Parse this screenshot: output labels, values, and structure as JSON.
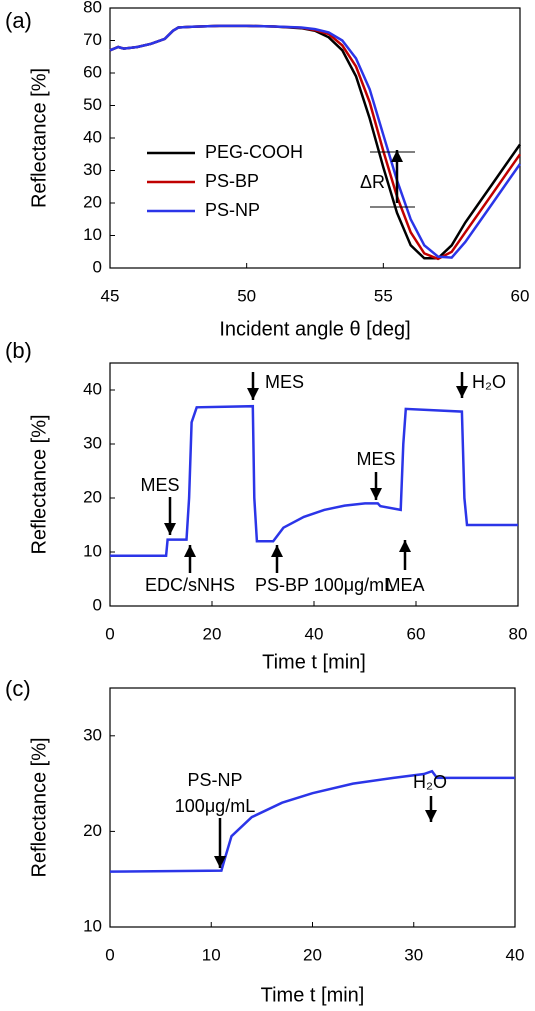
{
  "chart_data": [
    {
      "type": "line",
      "panel_label": "(a)",
      "x_label": "Incident angle θ [deg]",
      "y_label": "Reflectance [%]",
      "x": [
        45,
        45.3,
        45.5,
        46,
        46.5,
        47,
        47.3,
        47.5,
        48,
        49,
        50,
        51,
        52,
        52.5,
        53,
        53.5,
        54,
        54.5,
        55,
        55.5,
        56,
        56.5,
        57,
        57.5,
        58,
        58.5,
        59,
        59.5,
        60
      ],
      "series": [
        {
          "name": "PEG-COOH",
          "color": "#000000",
          "values": [
            67,
            68,
            67.5,
            68,
            69,
            70.5,
            73,
            74,
            74.2,
            74.5,
            74.5,
            74.3,
            73.8,
            73,
            71,
            67,
            59,
            46,
            31,
            17,
            7,
            3,
            3,
            7,
            14,
            20,
            26,
            32,
            38
          ]
        },
        {
          "name": "PS-BP",
          "color": "#c00000",
          "values": [
            67,
            68,
            67.5,
            68,
            69,
            70.5,
            73,
            74,
            74.2,
            74.5,
            74.5,
            74.3,
            73.9,
            73.2,
            72,
            68.5,
            62,
            51,
            36,
            22,
            11,
            4.5,
            2.8,
            5,
            11,
            17,
            23,
            29,
            35
          ]
        },
        {
          "name": "PS-NP",
          "color": "#2b35e8",
          "values": [
            67,
            68,
            67.5,
            68,
            69,
            70.5,
            73,
            74,
            74.2,
            74.5,
            74.5,
            74.3,
            74,
            73.5,
            72.5,
            70,
            64.5,
            55,
            41,
            27,
            15,
            7,
            3.5,
            3.2,
            8,
            14,
            20,
            26,
            32
          ]
        }
      ],
      "xlim": [
        45,
        60
      ],
      "ylim": [
        0,
        80
      ],
      "xticks": [
        45,
        50,
        55,
        60
      ],
      "yticks": [
        0,
        10,
        20,
        30,
        40,
        50,
        60,
        70,
        80
      ],
      "annotations": [
        "ΔR"
      ]
    },
    {
      "type": "line",
      "panel_label": "(b)",
      "x_label": "Time t [min]",
      "y_label": "Reflectance [%]",
      "x": [
        0,
        11,
        11.3,
        15,
        15.5,
        16,
        17,
        28,
        28.3,
        28.8,
        32,
        34,
        38,
        42,
        46,
        50,
        52.5,
        53,
        57,
        57.5,
        58,
        69,
        69.5,
        70,
        80
      ],
      "series": [
        {
          "color": "#2b35e8",
          "values": [
            9.3,
            9.3,
            12.3,
            12.3,
            20,
            34,
            36.8,
            37,
            20,
            12,
            12,
            14.5,
            16.5,
            17.8,
            18.6,
            19,
            19,
            18.5,
            17.8,
            30,
            36.5,
            36,
            20,
            15,
            15
          ]
        }
      ],
      "xlim": [
        0,
        80
      ],
      "ylim": [
        0,
        45
      ],
      "xticks": [
        0,
        20,
        40,
        60,
        80
      ],
      "yticks": [
        0,
        10,
        20,
        30,
        40
      ],
      "annotations": [
        "MES",
        "EDC/sNHS",
        "MES",
        "PS-BP 100μg/mL",
        "MES",
        "MEA",
        "H₂O"
      ]
    },
    {
      "type": "line",
      "panel_label": "(c)",
      "x_label": "Time t [min]",
      "y_label": "Reflectance [%]",
      "x": [
        0,
        11,
        11.3,
        12,
        14,
        17,
        20,
        24,
        28,
        31,
        31.8,
        32.3,
        40
      ],
      "series": [
        {
          "color": "#2b35e8",
          "values": [
            15.8,
            15.9,
            17,
            19.5,
            21.5,
            23,
            24,
            25,
            25.6,
            26,
            26.3,
            25.6,
            25.6
          ]
        }
      ],
      "xlim": [
        0,
        40
      ],
      "ylim": [
        10,
        35
      ],
      "xticks": [
        0,
        10,
        20,
        30,
        40
      ],
      "yticks": [
        10,
        20,
        30
      ],
      "annotations": [
        "PS-NP",
        "100μg/mL",
        "H₂O"
      ]
    }
  ]
}
